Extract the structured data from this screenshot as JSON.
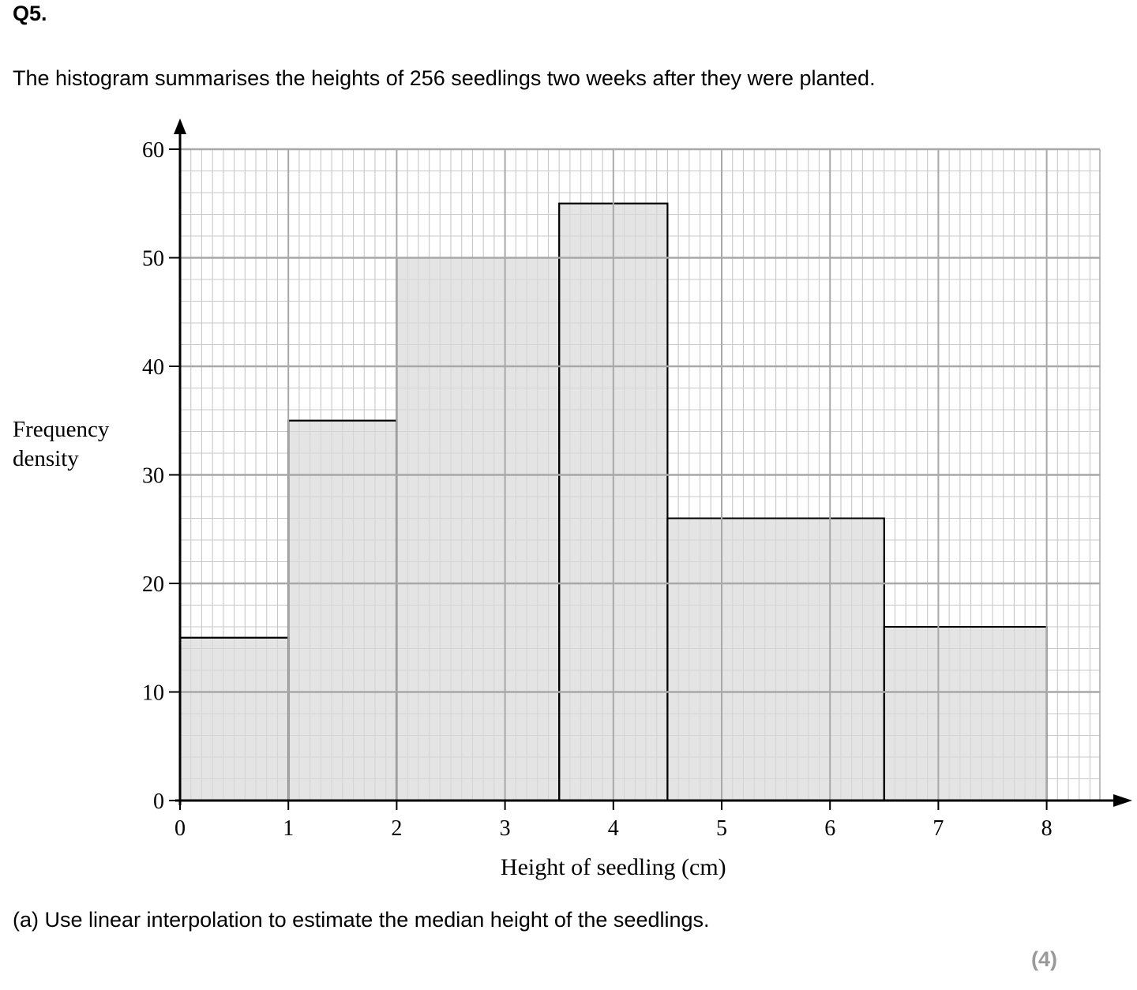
{
  "question": {
    "number": "Q5.",
    "intro": "The histogram summarises the heights of 256 seedlings two weeks after they were planted.",
    "part_a": "(a)  Use linear interpolation to estimate the median height of the seedlings.",
    "marks": "(4)"
  },
  "chart_data": {
    "type": "bar",
    "title": "",
    "xlabel": "Height of seedling (cm)",
    "ylabel": [
      "Frequency",
      "density"
    ],
    "xlim": [
      0,
      8.5
    ],
    "ylim": [
      0,
      60
    ],
    "x_ticks": [
      0,
      1,
      2,
      3,
      4,
      5,
      6,
      7,
      8
    ],
    "y_ticks": [
      0,
      10,
      20,
      30,
      40,
      50,
      60
    ],
    "grid": true,
    "bars": [
      {
        "x_start": 0,
        "x_end": 1,
        "value": 15
      },
      {
        "x_start": 1,
        "x_end": 2,
        "value": 35
      },
      {
        "x_start": 2,
        "x_end": 3.5,
        "value": 50
      },
      {
        "x_start": 3.5,
        "x_end": 4.5,
        "value": 55
      },
      {
        "x_start": 4.5,
        "x_end": 6.5,
        "value": 26
      },
      {
        "x_start": 6.5,
        "x_end": 8,
        "value": 16
      }
    ],
    "colors": {
      "bar_fill": "#d9d9d9",
      "bar_stroke": "#000000",
      "grid_minor": "#c8c8c8",
      "grid_major": "#a8a8a8"
    }
  }
}
